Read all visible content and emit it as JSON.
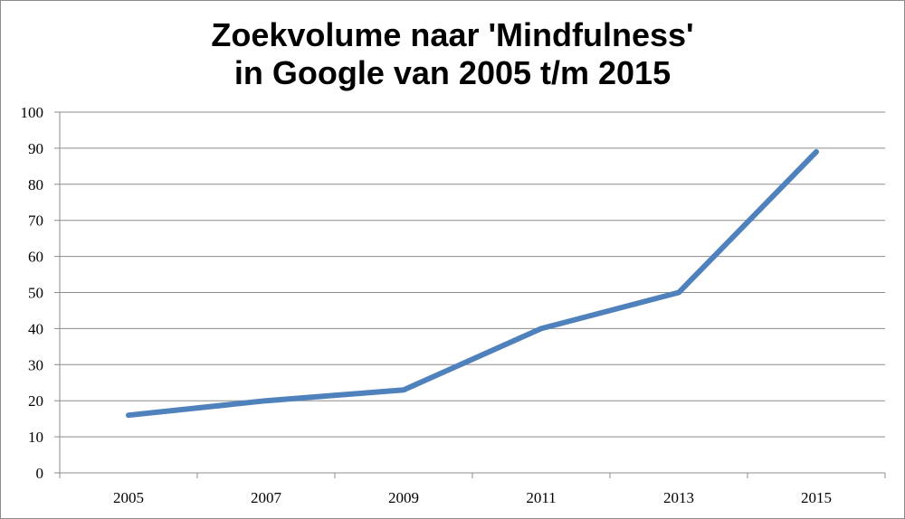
{
  "chart_data": {
    "type": "line",
    "title_line1": "Zoekvolume naar 'Mindfulness'",
    "title_line2": "in Google van 2005 t/m 2015",
    "xlabel": "",
    "ylabel": "",
    "x": [
      "2005",
      "2007",
      "2009",
      "2011",
      "2013",
      "2015"
    ],
    "series": [
      {
        "values": [
          16,
          20,
          23,
          40,
          50,
          89
        ]
      }
    ],
    "ylim": [
      0,
      100
    ],
    "yticks": [
      0,
      10,
      20,
      30,
      40,
      50,
      60,
      70,
      80,
      90,
      100
    ],
    "grid": true,
    "legend": "none",
    "colors": {
      "line": "#4f81bd",
      "grid": "#8c8c8c",
      "axis": "#8c8c8c"
    }
  }
}
